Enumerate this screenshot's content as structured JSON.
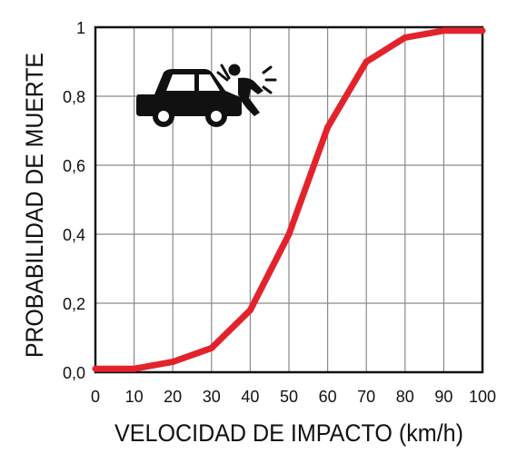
{
  "chart_data": {
    "type": "line",
    "title": "",
    "xlabel": "VELOCIDAD DE IMPACTO (km/h)",
    "ylabel": "PROBABILIDAD DE MUERTE",
    "xlim": [
      0,
      100
    ],
    "ylim": [
      0,
      1
    ],
    "x_ticks": [
      0,
      10,
      20,
      30,
      40,
      50,
      60,
      70,
      80,
      90,
      100
    ],
    "x_tick_labels": [
      "0",
      "10",
      "20",
      "30",
      "40",
      "50",
      "60",
      "70",
      "80",
      "90",
      "100"
    ],
    "y_ticks": [
      0,
      0.2,
      0.4,
      0.6,
      0.8,
      1
    ],
    "y_tick_labels": [
      "0,0",
      "0,2",
      "0,4",
      "0,6",
      "0,8",
      "1"
    ],
    "grid": true,
    "legend": "none",
    "series": [
      {
        "color": "#e3232c",
        "x": [
          0,
          10,
          20,
          30,
          40,
          50,
          60,
          70,
          80,
          90,
          100
        ],
        "y": [
          0.01,
          0.01,
          0.03,
          0.07,
          0.18,
          0.4,
          0.71,
          0.9,
          0.97,
          0.99,
          0.99
        ]
      }
    ]
  },
  "icon": "car-hitting-pedestrian-icon"
}
